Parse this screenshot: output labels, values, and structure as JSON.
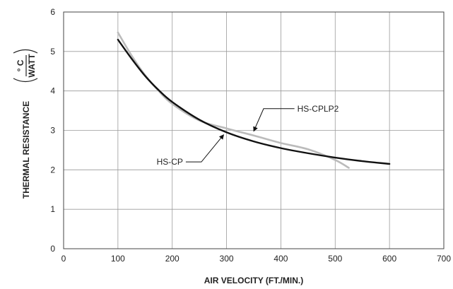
{
  "chart_data": {
    "type": "line",
    "xlabel": "AIR VELOCITY (FT./MIN.)",
    "ylabel": {
      "main": "THERMAL RESISTANCE",
      "unit_numerator": "° C",
      "unit_denominator": "WATT"
    },
    "xlim": [
      0,
      700
    ],
    "ylim": [
      0,
      6
    ],
    "x_ticks": [
      "0",
      "100",
      "200",
      "300",
      "400",
      "500",
      "600",
      "700"
    ],
    "y_ticks": [
      "0",
      "1",
      "2",
      "3",
      "4",
      "5",
      "6"
    ],
    "grid": true,
    "series": [
      {
        "name": "HS-CP",
        "color": "#111111",
        "x": [
          100,
          125,
          150,
          175,
          200,
          250,
          300,
          350,
          400,
          450,
          500,
          550,
          600
        ],
        "y": [
          5.3,
          4.82,
          4.38,
          4.02,
          3.72,
          3.27,
          2.95,
          2.72,
          2.55,
          2.42,
          2.31,
          2.22,
          2.15
        ]
      },
      {
        "name": "HS-CPLP2",
        "color": "#bbbbbb",
        "x": [
          100,
          125,
          150,
          175,
          200,
          250,
          300,
          350,
          400,
          450,
          500,
          525
        ],
        "y": [
          5.48,
          4.9,
          4.4,
          4.0,
          3.67,
          3.25,
          3.05,
          2.87,
          2.68,
          2.52,
          2.25,
          2.05
        ]
      }
    ],
    "annotations": [
      {
        "text": "HS-CPLP2",
        "series": "HS-CPLP2",
        "label_at": [
          425,
          3.55
        ],
        "arrow_to": [
          350,
          2.87
        ]
      },
      {
        "text": "HS-CP",
        "series": "HS-CP",
        "label_at": [
          225,
          2.2
        ],
        "arrow_to": [
          300,
          2.98
        ]
      }
    ]
  }
}
